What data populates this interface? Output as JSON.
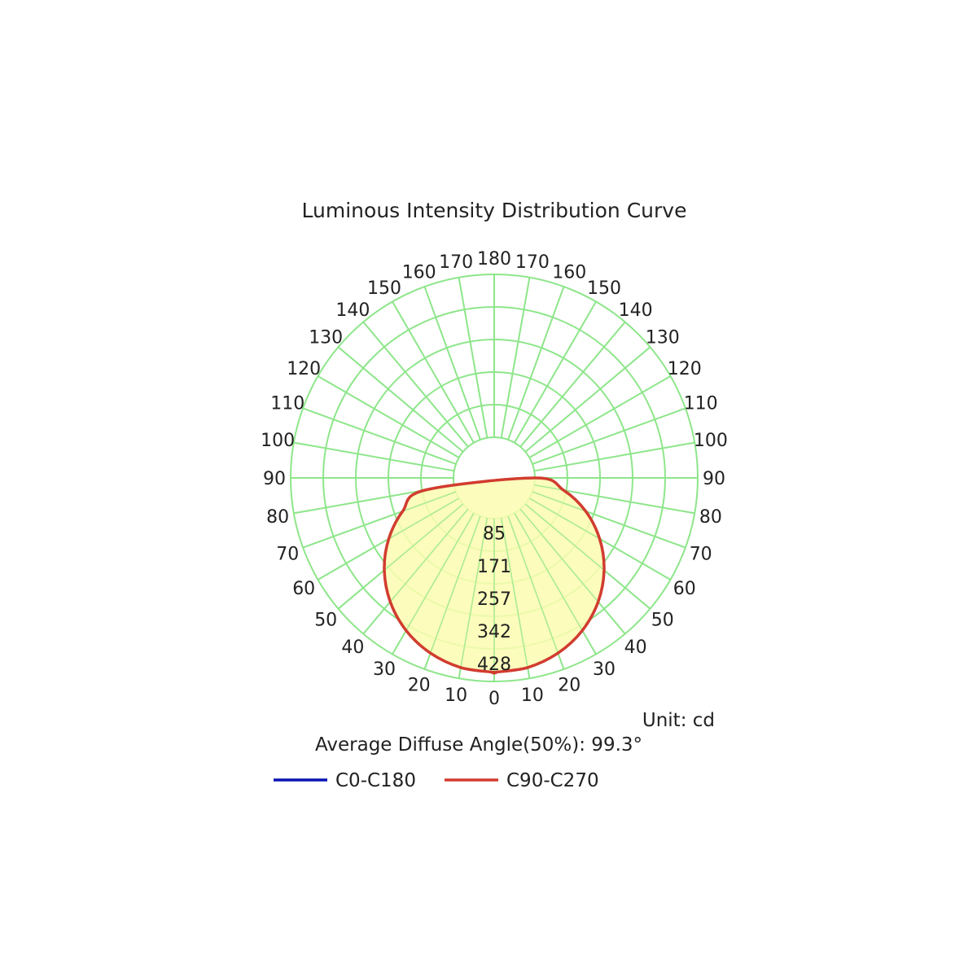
{
  "chart_data": {
    "type": "polar",
    "title": "Luminous Intensity Distribution Curve",
    "unit_text": "Unit: cd",
    "footer_text": "Average Diffuse Angle(50%): 99.3°",
    "angle_labels_left": [
      "0",
      "10",
      "20",
      "30",
      "40",
      "50",
      "60",
      "70",
      "80",
      "90",
      "100",
      "110",
      "120",
      "130",
      "140",
      "150",
      "160",
      "170",
      "180"
    ],
    "angle_labels_right": [
      "10",
      "20",
      "30",
      "40",
      "50",
      "60",
      "70",
      "80",
      "90",
      "100",
      "110",
      "120",
      "130",
      "140",
      "150",
      "160",
      "170"
    ],
    "radial_ticks": [
      "85",
      "171",
      "257",
      "342",
      "428"
    ],
    "radial_max": 428,
    "grid": true,
    "legend_position": "bottom",
    "colors": {
      "grid": "#8ee68a",
      "fill": "#fbfbb0",
      "c0": "#0a14b4",
      "c90": "#d23c2e"
    },
    "series": [
      {
        "name": "C0-C180",
        "angles": [
          0,
          10,
          20,
          30,
          40,
          50,
          60,
          70,
          80,
          90
        ],
        "values": [
          404,
          399,
          383,
          356,
          318,
          270,
          213,
          149,
          78,
          0
        ]
      },
      {
        "name": "C90-C270",
        "angles": [
          0,
          10,
          20,
          30,
          40,
          50,
          60,
          70,
          80,
          90
        ],
        "values": [
          404,
          399,
          383,
          356,
          318,
          270,
          213,
          149,
          78,
          0
        ]
      }
    ]
  }
}
